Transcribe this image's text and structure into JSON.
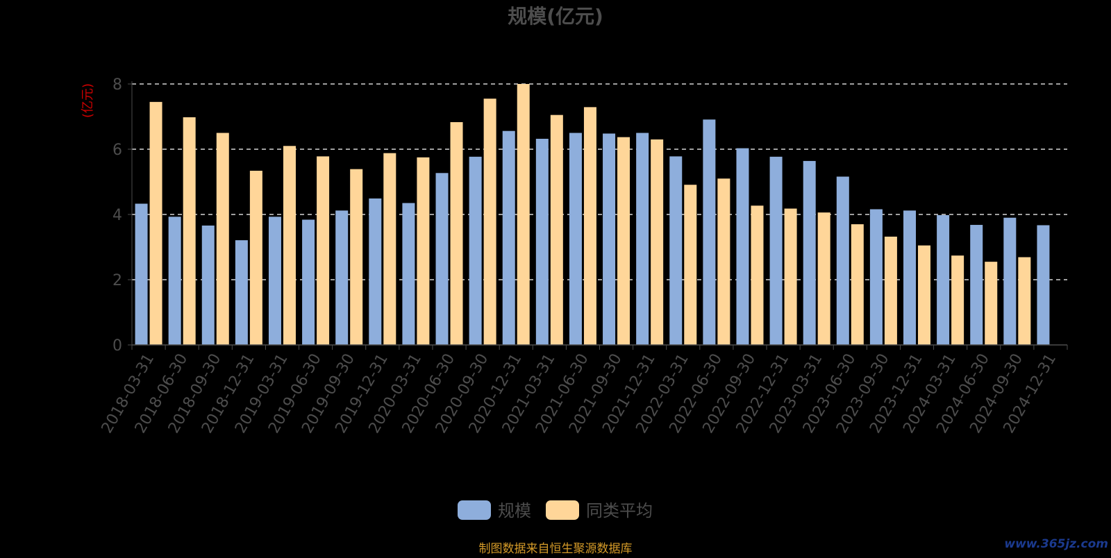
{
  "chart_data": {
    "type": "bar",
    "title": "规模(亿元)",
    "ylabel": "(亿元)",
    "xlabel": "",
    "ylim": [
      0,
      8
    ],
    "yticks": [
      0,
      2,
      4,
      6,
      8
    ],
    "grid": true,
    "legend_position": "bottom",
    "categories": [
      "2018-03-31",
      "2018-06-30",
      "2018-09-30",
      "2018-12-31",
      "2019-03-31",
      "2019-06-30",
      "2019-09-30",
      "2019-12-31",
      "2020-03-31",
      "2020-06-30",
      "2020-09-30",
      "2020-12-31",
      "2021-03-31",
      "2021-06-30",
      "2021-09-30",
      "2021-12-31",
      "2022-03-31",
      "2022-06-30",
      "2022-09-30",
      "2022-12-31",
      "2023-03-31",
      "2023-06-30",
      "2023-09-30",
      "2023-12-31",
      "2024-03-31",
      "2024-06-30",
      "2024-09-30",
      "2024-12-31"
    ],
    "series": [
      {
        "name": "规模",
        "color": "#8eaedc",
        "values": [
          4.33,
          3.93,
          3.66,
          3.21,
          3.93,
          3.84,
          4.12,
          4.49,
          4.35,
          5.27,
          5.77,
          6.56,
          6.32,
          6.5,
          6.48,
          6.5,
          5.78,
          6.91,
          6.03,
          5.77,
          5.64,
          5.16,
          4.16,
          4.12,
          3.98,
          3.68,
          3.9,
          3.67
        ]
      },
      {
        "name": "同类平均",
        "color": "#ffd699",
        "values": [
          7.45,
          6.98,
          6.5,
          5.34,
          6.1,
          5.78,
          5.39,
          5.88,
          5.75,
          6.83,
          7.55,
          8.0,
          7.05,
          7.29,
          6.37,
          6.3,
          4.91,
          5.1,
          4.27,
          4.18,
          4.06,
          3.7,
          3.32,
          3.05,
          2.74,
          2.55,
          2.69,
          null
        ]
      }
    ]
  },
  "source_note": "制图数据来自恒生聚源数据库",
  "watermark": "www.365jz.com",
  "colors": {
    "background": "#000000",
    "title": "#4d4d4d",
    "axis_text": "#4d4d4d",
    "ylabel": "#cc0000",
    "grid": "#ffffff",
    "axis_line": "#4d4d4d",
    "source_note": "#d49a28"
  }
}
